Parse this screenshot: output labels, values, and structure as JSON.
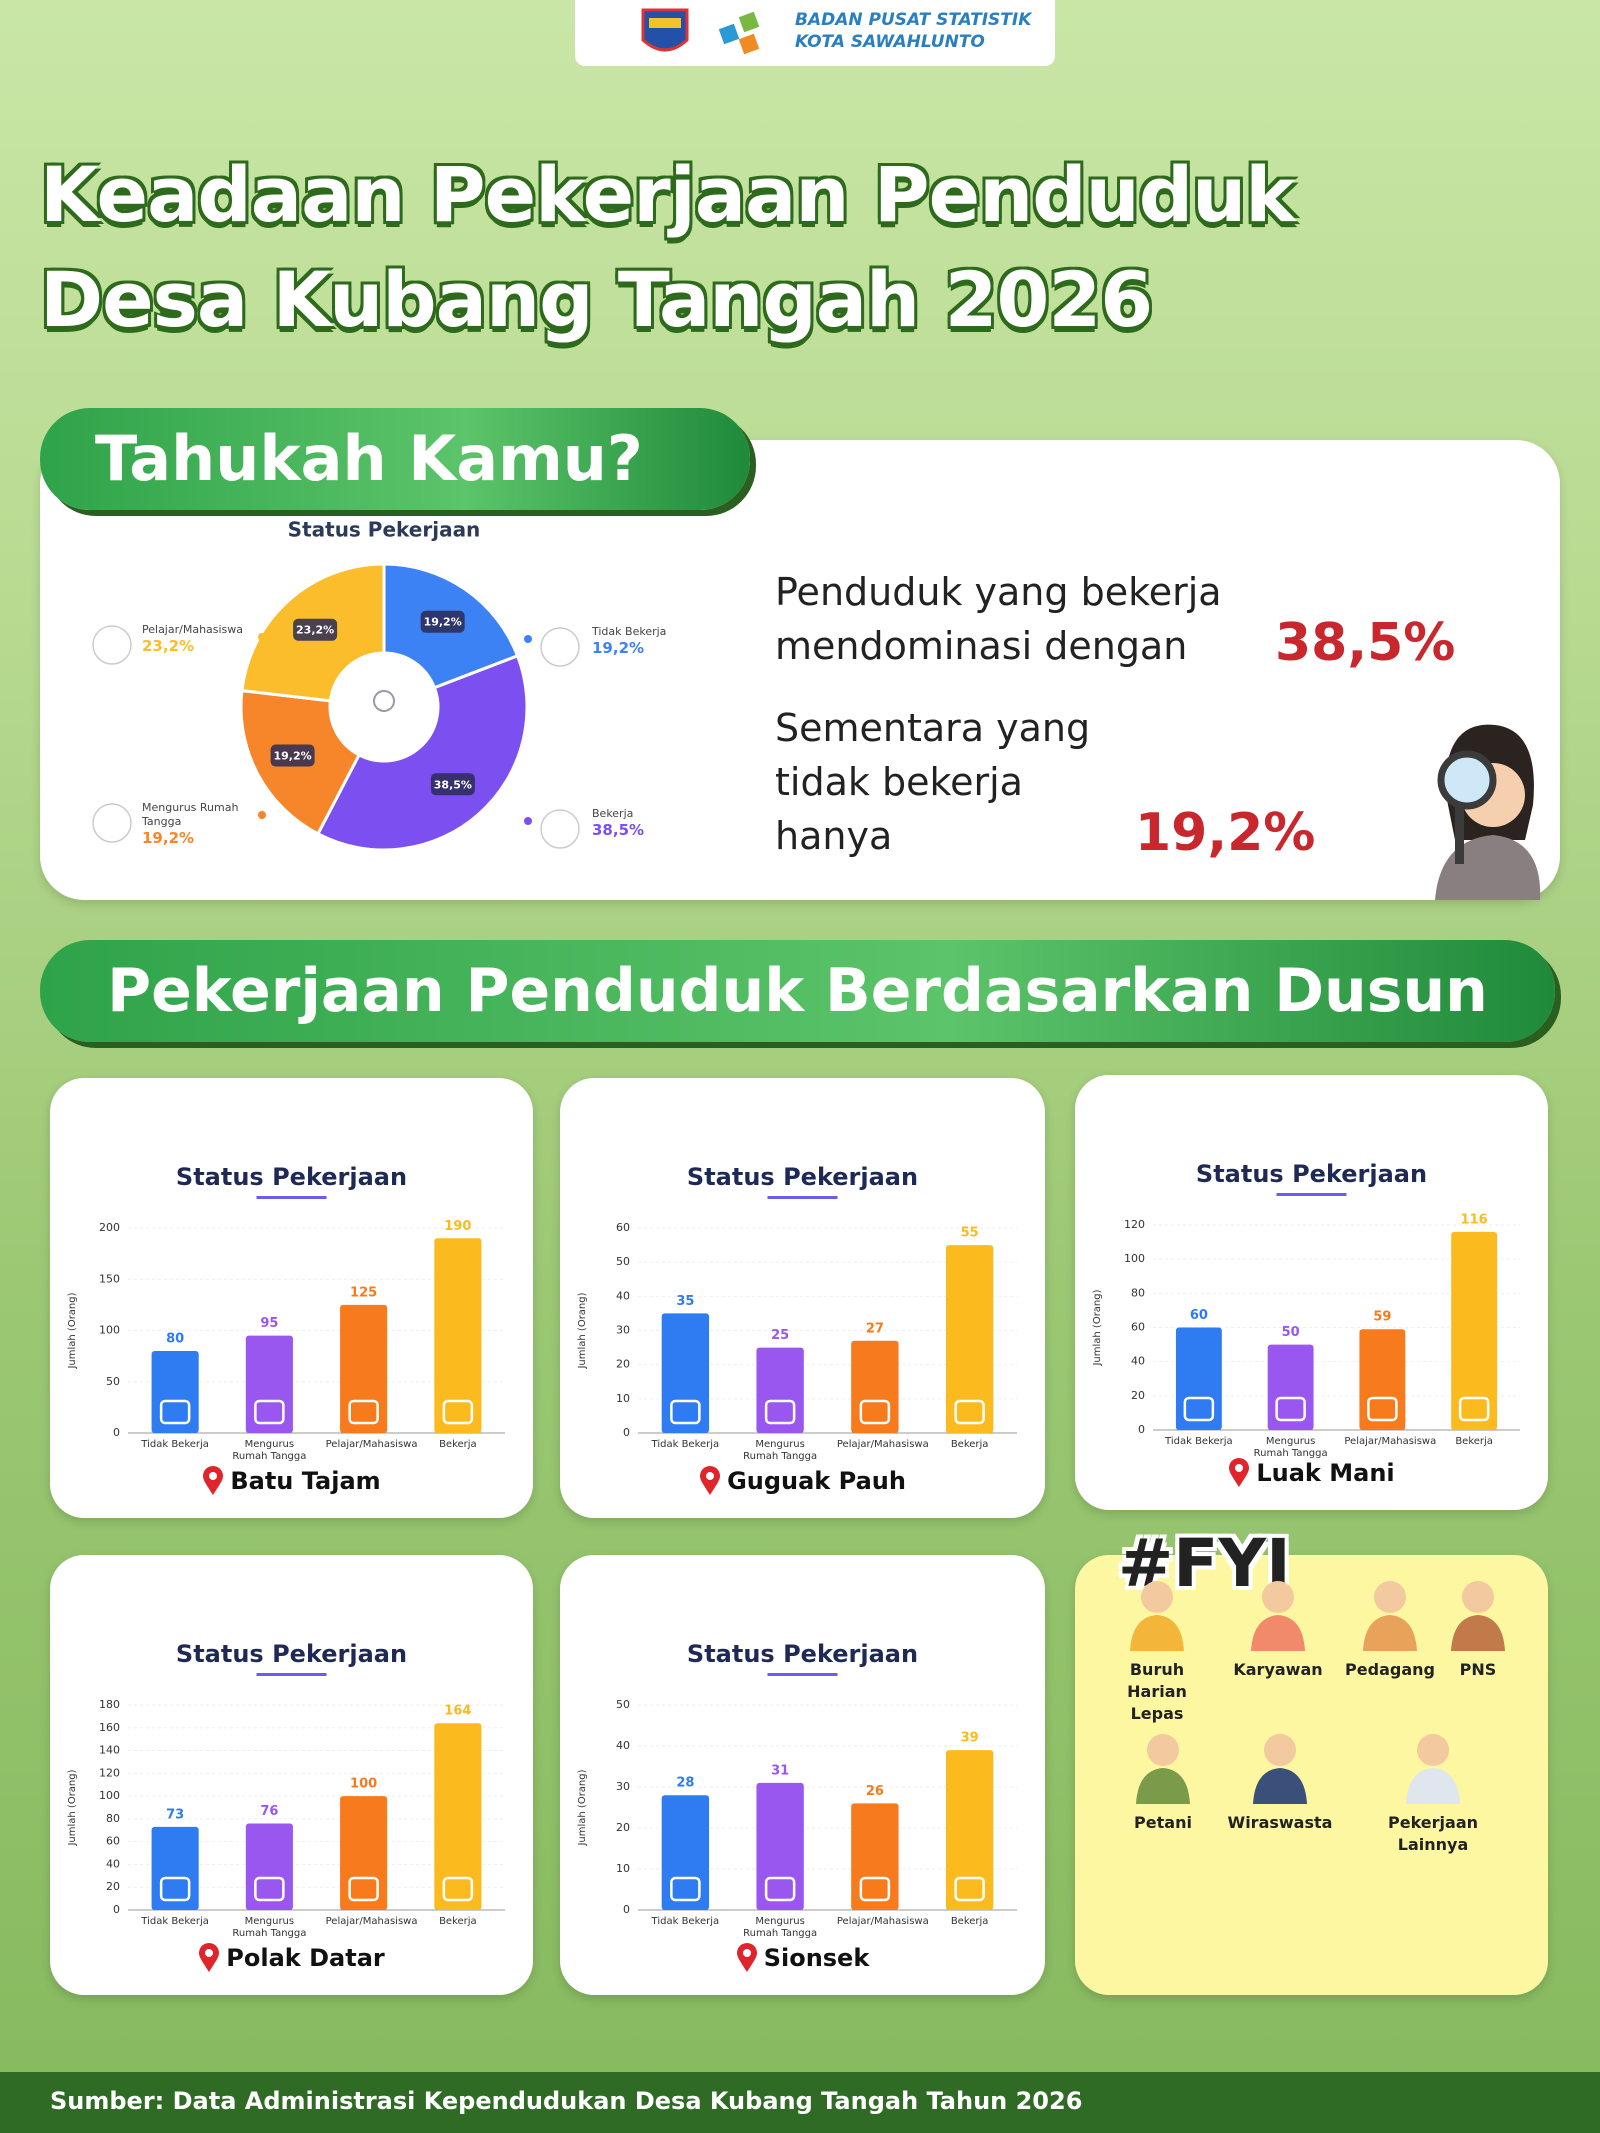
{
  "header": {
    "org": "BADAN PUSAT STATISTIK",
    "city": "KOTA SAWAHLUNTO"
  },
  "title": [
    "Keadaan Pekerjaan Penduduk",
    "Desa Kubang Tangah 2026"
  ],
  "did_you_know": {
    "heading": "Tahukah Kamu?",
    "lines": [
      {
        "text": "Penduduk yang bekerja mendominasi dengan",
        "value": "38,5%"
      },
      {
        "text": "Sementara yang tidak bekerja hanya",
        "value": "19,2%"
      }
    ]
  },
  "section_title": "Pekerjaan Penduduk Berdasarkan Dusun",
  "chart_data": [
    {
      "type": "pie",
      "title": "Status Pekerjaan",
      "categories": [
        "Tidak Bekerja",
        "Bekerja",
        "Mengurus Rumah Tangga",
        "Pelajar/Mahasiswa"
      ],
      "values": [
        19.2,
        38.5,
        19.2,
        23.2
      ],
      "value_labels": [
        "19,2%",
        "38,5%",
        "19,2%",
        "23,2%"
      ],
      "colors": [
        "#3d82f4",
        "#7b4ff0",
        "#f7862a",
        "#fbbd2c"
      ]
    },
    {
      "type": "bar",
      "title": "Status Pekerjaan",
      "location": "Batu Tajam",
      "ylabel": "Jumlah (Orang)",
      "categories": [
        "Tidak Bekerja",
        "Mengurus Rumah Tangga",
        "Pelajar/Mahasiswa",
        "Bekerja"
      ],
      "values": [
        80,
        95,
        125,
        190
      ],
      "colors": [
        "#2f7cf2",
        "#9a57f0",
        "#f77a1c",
        "#fbbb1e"
      ],
      "ylim": [
        0,
        200
      ],
      "yticks": [
        0,
        50,
        100,
        150,
        200
      ]
    },
    {
      "type": "bar",
      "title": "Status Pekerjaan",
      "location": "Guguak Pauh",
      "ylabel": "Jumlah (Orang)",
      "categories": [
        "Tidak Bekerja",
        "Mengurus Rumah Tangga",
        "Pelajar/Mahasiswa",
        "Bekerja"
      ],
      "values": [
        35,
        25,
        27,
        55
      ],
      "colors": [
        "#2f7cf2",
        "#9a57f0",
        "#f77a1c",
        "#fbbb1e"
      ],
      "ylim": [
        0,
        60
      ],
      "yticks": [
        0,
        10,
        20,
        30,
        40,
        50,
        60
      ]
    },
    {
      "type": "bar",
      "title": "Status Pekerjaan",
      "location": "Luak Mani",
      "ylabel": "Jumlah (Orang)",
      "categories": [
        "Tidak Bekerja",
        "Mengurus Rumah Tangga",
        "Pelajar/Mahasiswa",
        "Bekerja"
      ],
      "values": [
        60,
        50,
        59,
        116
      ],
      "colors": [
        "#2f7cf2",
        "#9a57f0",
        "#f77a1c",
        "#fbbb1e"
      ],
      "ylim": [
        0,
        120
      ],
      "yticks": [
        0,
        20,
        40,
        60,
        80,
        100,
        120
      ]
    },
    {
      "type": "bar",
      "title": "Status Pekerjaan",
      "location": "Polak Datar",
      "ylabel": "Jumlah (Orang)",
      "categories": [
        "Tidak Bekerja",
        "Mengurus Rumah Tangga",
        "Pelajar/Mahasiswa",
        "Bekerja"
      ],
      "values": [
        73,
        76,
        100,
        164
      ],
      "colors": [
        "#2f7cf2",
        "#9a57f0",
        "#f77a1c",
        "#fbbb1e"
      ],
      "ylim": [
        0,
        180
      ],
      "yticks": [
        0,
        20,
        40,
        60,
        80,
        100,
        120,
        140,
        160,
        180
      ]
    },
    {
      "type": "bar",
      "title": "Status Pekerjaan",
      "location": "Sionsek",
      "ylabel": "Jumlah (Orang)",
      "categories": [
        "Tidak Bekerja",
        "Mengurus Rumah Tangga",
        "Pelajar/Mahasiswa",
        "Bekerja"
      ],
      "values": [
        28,
        31,
        26,
        39
      ],
      "colors": [
        "#2f7cf2",
        "#9a57f0",
        "#f77a1c",
        "#fbbb1e"
      ],
      "ylim": [
        0,
        50
      ],
      "yticks": [
        0,
        10,
        20,
        30,
        40,
        50
      ]
    }
  ],
  "fyi": {
    "title": "#FYI",
    "items": [
      "Buruh Harian Lepas",
      "Karyawan",
      "Pedagang",
      "PNS",
      "Petani",
      "Wiraswasta",
      "Pekerjaan Lainnya"
    ]
  },
  "source": "Sumber: Data Administrasi Kependudukan Desa Kubang Tangah Tahun 2026"
}
